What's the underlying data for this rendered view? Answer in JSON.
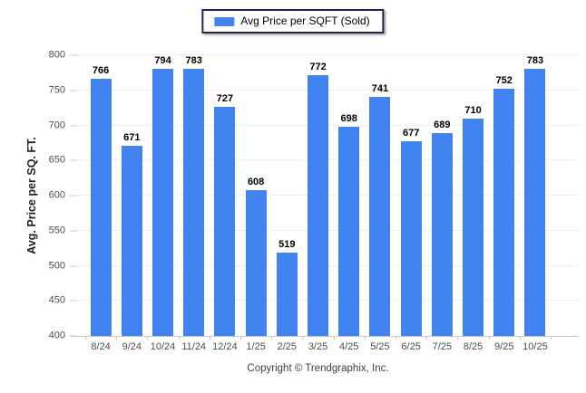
{
  "legend": {
    "label": "Avg Price per SQFT (Sold)"
  },
  "y_axis": {
    "title": "Avg. Price per SQ. FT."
  },
  "footer": {
    "text": "Copyright © Trendgraphix, Inc."
  },
  "colors": {
    "bar": "#4183f1",
    "grid": "#efefef",
    "axis": "#c9c9c9",
    "tick_label": "#4d4d4d",
    "value_label": "#000000",
    "legend_border": "#1c2553"
  },
  "chart_data": {
    "type": "bar",
    "title": "",
    "series_name": "Avg Price per SQFT (Sold)",
    "categories": [
      "8/24",
      "9/24",
      "10/24",
      "11/24",
      "12/24",
      "1/25",
      "2/25",
      "3/25",
      "4/25",
      "5/25",
      "6/25",
      "7/25",
      "8/25",
      "9/25",
      "10/25"
    ],
    "values": [
      766,
      671,
      794,
      783,
      727,
      608,
      519,
      772,
      698,
      741,
      677,
      689,
      710,
      752,
      783
    ],
    "xlabel": "",
    "ylabel": "Avg. Price per SQ. FT.",
    "ylim": [
      400,
      800
    ],
    "ytick_step": 50,
    "grid": true,
    "value_labels": true,
    "legend_position": "top-center"
  }
}
